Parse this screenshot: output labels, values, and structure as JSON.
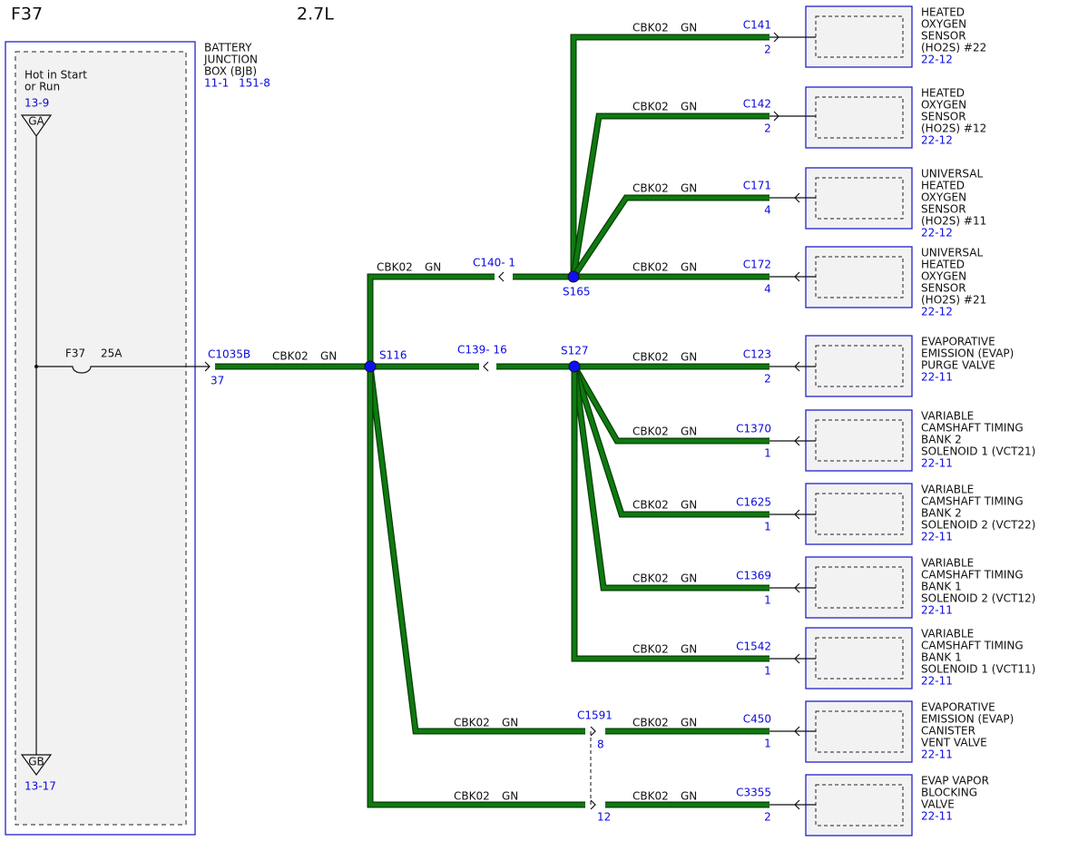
{
  "header": {
    "title": "F37",
    "engine": "2.7L"
  },
  "source": {
    "name_lines": [
      "BATTERY",
      "JUNCTION",
      "BOX (BJB)"
    ],
    "refs": [
      "11-1",
      "151-8"
    ],
    "feed_lines": [
      "Hot in Start",
      "or Run"
    ],
    "feed_ref": "13-9",
    "top_terminal": "GA",
    "bottom_terminal": "GB",
    "bottom_ref": "13-17",
    "fuse": "F37",
    "fuse_rating": "25A",
    "connector": "C1035B",
    "pin": "37"
  },
  "splices": [
    "S116",
    "S127",
    "S165"
  ],
  "inline_connectors": {
    "c140": "C140- 1",
    "c139": "C139- 16",
    "c1591": "C1591",
    "c1591_pins": [
      "8",
      "12"
    ]
  },
  "wires": [
    {
      "circuit": "CBK02",
      "color": "GN"
    },
    {
      "circuit": "CBK02",
      "color": "GN"
    },
    {
      "circuit": "CBK02",
      "color": "GN"
    },
    {
      "circuit": "CBK02",
      "color": "GN"
    },
    {
      "circuit": "CBK02",
      "color": "GN"
    },
    {
      "circuit": "CBK02",
      "color": "GN"
    },
    {
      "circuit": "CBK02",
      "color": "GN"
    },
    {
      "circuit": "CBK02",
      "color": "GN"
    },
    {
      "circuit": "CBK02",
      "color": "GN"
    },
    {
      "circuit": "CBK02",
      "color": "GN"
    },
    {
      "circuit": "CBK02",
      "color": "GN"
    },
    {
      "circuit": "CBK02",
      "color": "GN"
    },
    {
      "circuit": "CBK02",
      "color": "GN"
    },
    {
      "circuit": "CBK02",
      "color": "GN"
    },
    {
      "circuit": "CBK02",
      "color": "GN"
    }
  ],
  "components": [
    {
      "lines": [
        "HEATED",
        "OXYGEN",
        "SENSOR",
        "(HO2S) #22"
      ],
      "ref": "22-12",
      "connector": "C141",
      "pin": "2"
    },
    {
      "lines": [
        "HEATED",
        "OXYGEN",
        "SENSOR",
        "(HO2S) #12"
      ],
      "ref": "22-12",
      "connector": "C142",
      "pin": "2"
    },
    {
      "lines": [
        "UNIVERSAL",
        "HEATED",
        "OXYGEN",
        "SENSOR",
        "(HO2S) #11"
      ],
      "ref": "22-12",
      "connector": "C171",
      "pin": "4"
    },
    {
      "lines": [
        "UNIVERSAL",
        "HEATED",
        "OXYGEN",
        "SENSOR",
        "(HO2S) #21"
      ],
      "ref": "22-12",
      "connector": "C172",
      "pin": "4"
    },
    {
      "lines": [
        "EVAPORATIVE",
        "EMISSION (EVAP)",
        "PURGE VALVE"
      ],
      "ref": "22-11",
      "connector": "C123",
      "pin": "2"
    },
    {
      "lines": [
        "VARIABLE",
        "CAMSHAFT TIMING",
        "BANK 2",
        "SOLENOID 1 (VCT21)"
      ],
      "ref": "22-11",
      "connector": "C1370",
      "pin": "1"
    },
    {
      "lines": [
        "VARIABLE",
        "CAMSHAFT TIMING",
        "BANK 2",
        "SOLENOID 2 (VCT22)"
      ],
      "ref": "22-11",
      "connector": "C1625",
      "pin": "1"
    },
    {
      "lines": [
        "VARIABLE",
        "CAMSHAFT TIMING",
        "BANK 1",
        "SOLENOID 2 (VCT12)"
      ],
      "ref": "22-11",
      "connector": "C1369",
      "pin": "1"
    },
    {
      "lines": [
        "VARIABLE",
        "CAMSHAFT TIMING",
        "BANK 1",
        "SOLENOID 1 (VCT11)"
      ],
      "ref": "22-11",
      "connector": "C1542",
      "pin": "1"
    },
    {
      "lines": [
        "EVAPORATIVE",
        "EMISSION (EVAP)",
        "CANISTER",
        "VENT VALVE"
      ],
      "ref": "22-11",
      "connector": "C450",
      "pin": "1"
    },
    {
      "lines": [
        "EVAP VAPOR",
        "BLOCKING",
        "VALVE"
      ],
      "ref": "22-11",
      "connector": "C3355",
      "pin": "2"
    }
  ]
}
